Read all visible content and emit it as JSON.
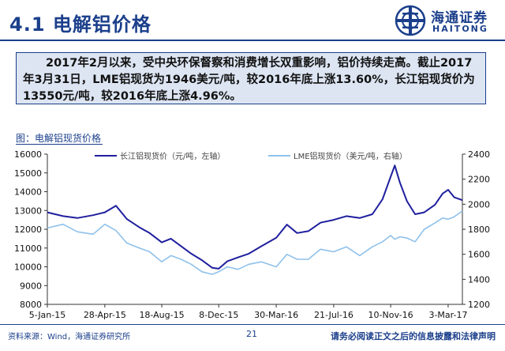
{
  "header": {
    "title": "4.1 电解铝价格",
    "logo_cn": "海通证券",
    "logo_en": "HAITONG"
  },
  "summary": "2017年2月以来，受中央环保督察和消费增长双重影响，铝价持续走高。截止2017年3月31日，LME铝现货为1946美元/吨，较2016年底上涨13.60%，长江铝现货价为13550元/吨，较2016年底上涨4.96%。",
  "chart_caption": "图：电解铝现货价格",
  "chart_data": {
    "type": "line",
    "title": "",
    "x_tick_labels": [
      "5-Jan-15",
      "28-Apr-15",
      "18-Aug-15",
      "8-Dec-15",
      "30-Mar-16",
      "21-Jul-16",
      "10-Nov-16",
      "3-Mar-17"
    ],
    "x_ticks": [
      "2015-01-05",
      "2015-04-28",
      "2015-08-18",
      "2015-12-08",
      "2016-03-30",
      "2016-07-21",
      "2016-11-10",
      "2017-03-03"
    ],
    "x_range": [
      "2015-01-05",
      "2017-03-31"
    ],
    "y_left": {
      "range": [
        8000,
        16000
      ],
      "ticks": [
        8000,
        9000,
        10000,
        11000,
        12000,
        13000,
        14000,
        15000,
        16000
      ]
    },
    "y_right": {
      "range": [
        1200,
        2400
      ],
      "ticks": [
        1200,
        1400,
        1600,
        1800,
        2000,
        2200,
        2400
      ]
    },
    "grid": false,
    "legend_position": "top",
    "series": [
      {
        "name": "长江铝现货价（元/吨，左轴）",
        "axis": "left",
        "color": "#1f1f9e",
        "points": [
          [
            "2015-01-05",
            12900
          ],
          [
            "2015-02-05",
            12700
          ],
          [
            "2015-03-05",
            12600
          ],
          [
            "2015-04-05",
            12750
          ],
          [
            "2015-04-28",
            12900
          ],
          [
            "2015-05-20",
            13250
          ],
          [
            "2015-06-10",
            12550
          ],
          [
            "2015-07-05",
            12100
          ],
          [
            "2015-07-25",
            11800
          ],
          [
            "2015-08-18",
            11300
          ],
          [
            "2015-09-05",
            11500
          ],
          [
            "2015-09-25",
            11100
          ],
          [
            "2015-10-15",
            10700
          ],
          [
            "2015-11-05",
            10350
          ],
          [
            "2015-11-25",
            9950
          ],
          [
            "2015-12-08",
            9900
          ],
          [
            "2015-12-25",
            10300
          ],
          [
            "2016-01-15",
            10500
          ],
          [
            "2016-02-05",
            10700
          ],
          [
            "2016-03-01",
            11100
          ],
          [
            "2016-03-30",
            11550
          ],
          [
            "2016-04-20",
            12250
          ],
          [
            "2016-05-10",
            11800
          ],
          [
            "2016-06-01",
            11900
          ],
          [
            "2016-06-25",
            12350
          ],
          [
            "2016-07-21",
            12500
          ],
          [
            "2016-08-15",
            12700
          ],
          [
            "2016-09-10",
            12600
          ],
          [
            "2016-10-05",
            12800
          ],
          [
            "2016-10-25",
            13600
          ],
          [
            "2016-11-10",
            14800
          ],
          [
            "2016-11-18",
            15400
          ],
          [
            "2016-11-28",
            14500
          ],
          [
            "2016-12-12",
            13500
          ],
          [
            "2016-12-28",
            12800
          ],
          [
            "2017-01-15",
            12900
          ],
          [
            "2017-02-05",
            13300
          ],
          [
            "2017-02-20",
            13900
          ],
          [
            "2017-03-03",
            14100
          ],
          [
            "2017-03-15",
            13700
          ],
          [
            "2017-03-31",
            13550
          ]
        ]
      },
      {
        "name": "LME铝现货价（美元/吨，右轴）",
        "axis": "right",
        "color": "#8fc1ea",
        "points": [
          [
            "2015-01-05",
            1810
          ],
          [
            "2015-02-05",
            1840
          ],
          [
            "2015-03-05",
            1780
          ],
          [
            "2015-04-05",
            1760
          ],
          [
            "2015-04-28",
            1840
          ],
          [
            "2015-05-20",
            1790
          ],
          [
            "2015-06-10",
            1690
          ],
          [
            "2015-07-05",
            1650
          ],
          [
            "2015-07-25",
            1620
          ],
          [
            "2015-08-18",
            1540
          ],
          [
            "2015-09-05",
            1590
          ],
          [
            "2015-09-25",
            1560
          ],
          [
            "2015-10-15",
            1520
          ],
          [
            "2015-11-05",
            1460
          ],
          [
            "2015-11-25",
            1440
          ],
          [
            "2015-12-08",
            1460
          ],
          [
            "2015-12-25",
            1500
          ],
          [
            "2016-01-15",
            1480
          ],
          [
            "2016-02-05",
            1520
          ],
          [
            "2016-03-01",
            1540
          ],
          [
            "2016-03-30",
            1500
          ],
          [
            "2016-04-20",
            1600
          ],
          [
            "2016-05-10",
            1560
          ],
          [
            "2016-06-01",
            1560
          ],
          [
            "2016-06-25",
            1640
          ],
          [
            "2016-07-21",
            1620
          ],
          [
            "2016-08-15",
            1660
          ],
          [
            "2016-09-10",
            1590
          ],
          [
            "2016-10-05",
            1660
          ],
          [
            "2016-10-25",
            1700
          ],
          [
            "2016-11-10",
            1750
          ],
          [
            "2016-11-18",
            1720
          ],
          [
            "2016-11-28",
            1740
          ],
          [
            "2016-12-12",
            1730
          ],
          [
            "2016-12-28",
            1700
          ],
          [
            "2017-01-15",
            1800
          ],
          [
            "2017-02-05",
            1850
          ],
          [
            "2017-02-20",
            1890
          ],
          [
            "2017-03-03",
            1880
          ],
          [
            "2017-03-15",
            1900
          ],
          [
            "2017-03-31",
            1946
          ]
        ]
      }
    ]
  },
  "footer": {
    "source": "资料来源：Wind，海通证券研究所",
    "page": "21",
    "disclaimer": "请务必阅读正文之后的信息披露和法律声明"
  }
}
